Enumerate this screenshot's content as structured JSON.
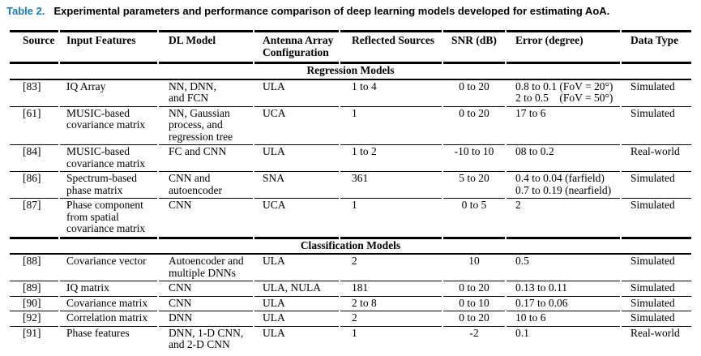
{
  "caption": {
    "label": "Table 2.",
    "text": "Experimental parameters and performance comparison of deep learning models developed for estimating AoA."
  },
  "colors": {
    "caption_accent": "#1B7BBB",
    "text": "#000000",
    "rule": "#000000"
  },
  "table": {
    "columns": [
      "Source",
      "Input Features",
      "DL Model",
      "Antenna Array\nConfiguration",
      "Reflected Sources",
      "SNR (dB)",
      "Error (degree)",
      "Data Type"
    ],
    "sections": [
      {
        "label": "Regression Models",
        "rows": [
          [
            "[83]",
            "IQ Array",
            "NN, DNN,\nand FCN",
            "ULA",
            "1 to 4",
            "0 to 20",
            "0.8 to 0.1 (FoV = 20°)\n2 to 0.5    (FoV = 50°)",
            "Simulated"
          ],
          [
            "[61]",
            "MUSIC-based\ncovariance matrix",
            "NN, Gaussian\nprocess, and\nregression tree",
            "UCA",
            "1",
            "0 to 20",
            "17 to 6",
            "Simulated"
          ],
          [
            "[84]",
            "MUSIC-based\ncovariance matrix",
            "FC and CNN",
            "ULA",
            "1 to 2",
            "-10 to 10",
            "08 to 0.2",
            "Real-world"
          ],
          [
            "[86]",
            "Spectrum-based\nphase matrix",
            "CNN and\nautoencoder",
            "SNA",
            "361",
            "5 to 20",
            "0.4 to 0.04 (farfield)\n0.7 to 0.19 (nearfield)",
            "Simulated"
          ],
          [
            "[87]",
            "Phase component\nfrom spatial\ncovariance matrix",
            "CNN",
            "UCA",
            "1",
            "0 to 5",
            "2",
            "Simulated"
          ]
        ]
      },
      {
        "label": "Classification Models",
        "rows": [
          [
            "[88]",
            "Covariance vector",
            "Autoencoder and\nmultiple DNNs",
            "ULA",
            "2",
            "10",
            "0.5",
            "Simulated"
          ],
          [
            "[89]",
            "IQ matrix",
            "CNN",
            "ULA, NULA",
            "181",
            "0 to 20",
            "0.13 to 0.11",
            "Simulated"
          ],
          [
            "[90]",
            "Covariance matrix",
            "CNN",
            "ULA",
            "2 to 8",
            "0 to 10",
            "0.17 to 0.06",
            "Simulated"
          ],
          [
            "[92]",
            "Correlation matrix",
            "DNN",
            "ULA",
            "2",
            "0 to 20",
            "10 to 6",
            "Simulated"
          ],
          [
            "[91]",
            "Phase features",
            "DNN, 1-D CNN,\nand 2-D CNN",
            "ULA",
            "1",
            "-2",
            "0.1",
            "Real-world"
          ]
        ]
      }
    ]
  }
}
